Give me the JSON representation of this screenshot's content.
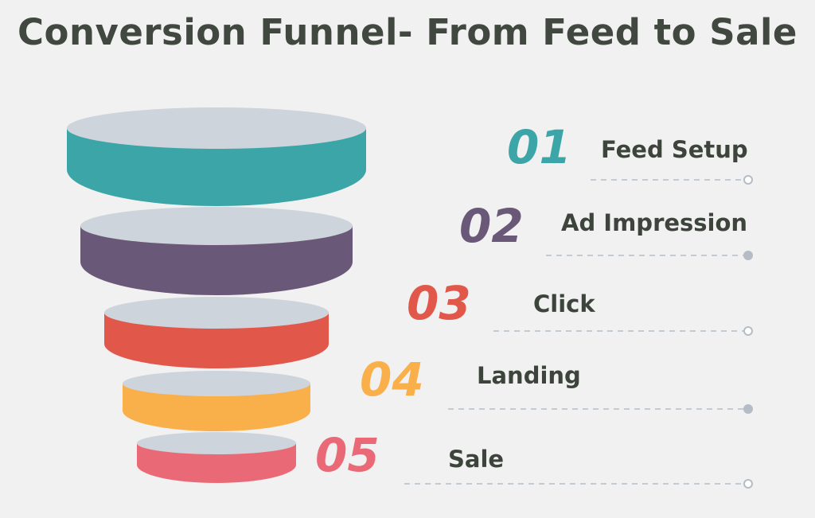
{
  "title": "Conversion Funnel- From Feed to Sale",
  "top_color": "#cdd4dc",
  "stages": [
    {
      "number": "01",
      "label": "Feed Setup",
      "color": "#3ba5a8",
      "label_color": "#3d443b"
    },
    {
      "number": "02",
      "label": "Ad Impression",
      "color": "#6a5878",
      "label_color": "#3d443b"
    },
    {
      "number": "03",
      "label": "Click",
      "color": "#e1584a",
      "label_color": "#3d443b"
    },
    {
      "number": "04",
      "label": "Landing",
      "color": "#f9b04b",
      "label_color": "#3d443b"
    },
    {
      "number": "05",
      "label": "Sale",
      "color": "#e96a76",
      "label_color": "#3d443b"
    }
  ]
}
